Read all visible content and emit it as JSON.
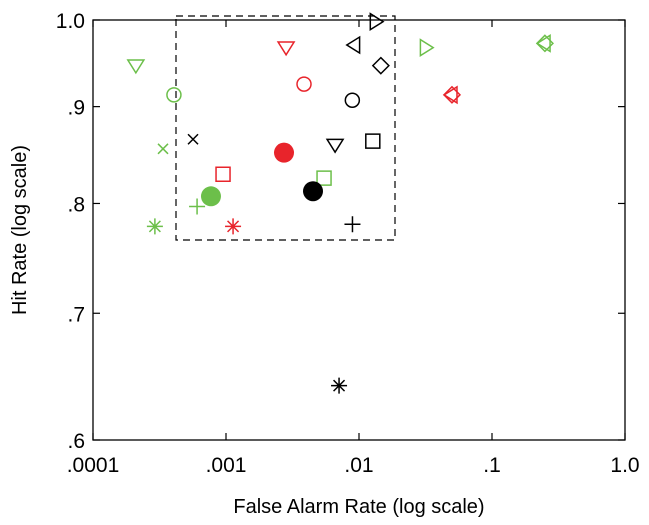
{
  "chart_data": {
    "type": "scatter",
    "xlabel": "False Alarm Rate (log scale)",
    "ylabel": "Hit Rate (log scale)",
    "xscale": "log",
    "yscale": "log",
    "xlim": [
      0.0001,
      1
    ],
    "ylim": [
      0.6,
      1
    ],
    "xticks": [
      {
        "value": 0.0001,
        "label": ".0001"
      },
      {
        "value": 0.001,
        "label": ".001"
      },
      {
        "value": 0.01,
        "label": ".01"
      },
      {
        "value": 0.1,
        "label": ".1"
      },
      {
        "value": 1,
        "label": "1.0"
      }
    ],
    "yticks": [
      {
        "value": 0.6,
        "label": ".6"
      },
      {
        "value": 0.7,
        "label": ".7"
      },
      {
        "value": 0.8,
        "label": ".8"
      },
      {
        "value": 0.9,
        "label": ".9"
      },
      {
        "value": 1,
        "label": "1.0"
      }
    ],
    "series": [
      {
        "color": "#6cbf4a",
        "markers": [
          "triangle-down",
          "circle",
          "x",
          "star",
          "plus",
          "filled-circle",
          "square",
          "triangle-right",
          "diamond",
          "triangle-left"
        ],
        "x": [
          0.00021,
          0.000406,
          0.000336,
          0.000292,
          0.000606,
          0.000771,
          0.00546,
          0.0319,
          0.25,
          0.248
        ],
        "values": [
          0.946,
          0.913,
          0.855,
          0.778,
          0.797,
          0.807,
          0.825,
          0.967,
          0.972,
          0.972
        ]
      },
      {
        "color": "#e8242b",
        "markers": [
          "triangle-down",
          "circle",
          "square",
          "filled-circle",
          "star",
          "diamond",
          "triangle-left"
        ],
        "x": [
          0.00283,
          0.00386,
          0.00095,
          0.00273,
          0.00113,
          0.05,
          0.0495
        ],
        "values": [
          0.967,
          0.925,
          0.829,
          0.851,
          0.778,
          0.913,
          0.913
        ]
      },
      {
        "color": "#000000",
        "markers": [
          "triangle-right",
          "triangle-left",
          "diamond",
          "circle",
          "square",
          "triangle-down",
          "x",
          "filled-circle",
          "plus",
          "star"
        ],
        "x": [
          0.0134,
          0.00917,
          0.0146,
          0.00891,
          0.0127,
          0.00661,
          0.000565,
          0.00451,
          0.00893,
          0.00708
        ],
        "values": [
          0.998,
          0.97,
          0.946,
          0.907,
          0.863,
          0.859,
          0.865,
          0.812,
          0.78,
          0.641
        ]
      }
    ]
  }
}
